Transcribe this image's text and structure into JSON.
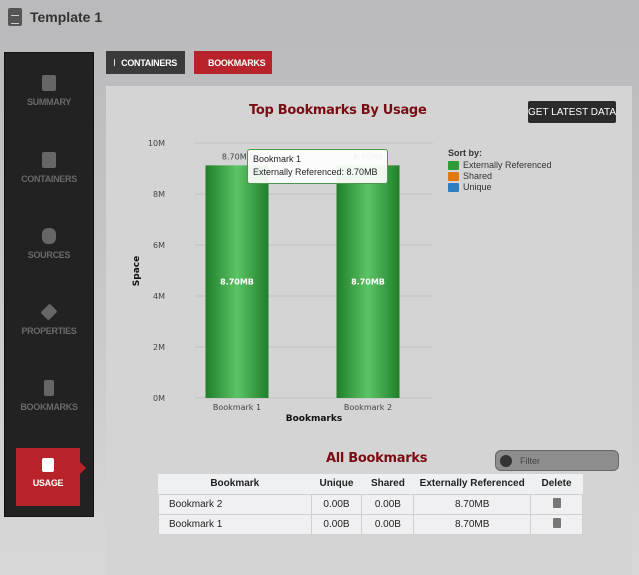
{
  "header": {
    "title": "Template 1"
  },
  "sidebar": {
    "items": [
      {
        "label": "SUMMARY",
        "icon": "document-icon"
      },
      {
        "label": "CONTAINERS",
        "icon": "archive-icon"
      },
      {
        "label": "SOURCES",
        "icon": "database-icon"
      },
      {
        "label": "PROPERTIES",
        "icon": "layers-icon"
      },
      {
        "label": "BOOKMARKS",
        "icon": "bookmark-icon"
      },
      {
        "label": "USAGE",
        "icon": "scale-icon",
        "active": true
      }
    ]
  },
  "tabs": [
    {
      "label": "CONTAINERS",
      "color": "#3a3a3a"
    },
    {
      "label": "BOOKMARKS",
      "color": "#b8222b",
      "active": true
    }
  ],
  "chart_title": "Top Bookmarks By Usage",
  "get_latest_label": "GET LATEST DATA",
  "chart_data": {
    "type": "bar",
    "categories": [
      "Bookmark 1",
      "Bookmark 2"
    ],
    "series": [
      {
        "name": "Externally Referenced",
        "values_mb": [
          8.7,
          8.7
        ],
        "color": "#2e9a38"
      }
    ],
    "data_labels": [
      "8.70MB",
      "8.70MB"
    ],
    "inner_labels": [
      "8.70MB",
      "8.70MB"
    ],
    "xlabel": "Bookmarks",
    "ylabel": "Space",
    "yticks": [
      "0M",
      "2M",
      "4M",
      "6M",
      "8M",
      "10M"
    ],
    "ylim": [
      0,
      10
    ],
    "grid": true
  },
  "legend": {
    "title": "Sort by:",
    "items": [
      {
        "label": "Externally Referenced",
        "color": "#2e9a38"
      },
      {
        "label": "Shared",
        "color": "#e07a10"
      },
      {
        "label": "Unique",
        "color": "#2d7fc1"
      }
    ]
  },
  "tooltip": {
    "title": "Bookmark 1",
    "line": "Externally Referenced: 8.70MB"
  },
  "table": {
    "title": "All Bookmarks",
    "filter_placeholder": "Filter",
    "columns": [
      "Bookmark",
      "Unique",
      "Shared",
      "Externally Referenced",
      "Delete"
    ],
    "rows": [
      {
        "name": "Bookmark 2",
        "unique": "0.00B",
        "shared": "0.00B",
        "ext": "8.70MB"
      },
      {
        "name": "Bookmark 1",
        "unique": "0.00B",
        "shared": "0.00B",
        "ext": "8.70MB"
      }
    ]
  }
}
